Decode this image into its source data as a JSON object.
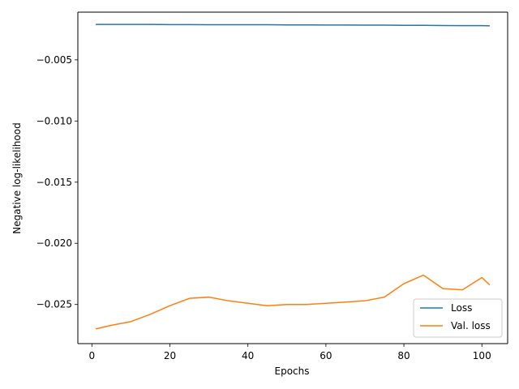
{
  "chart_data": {
    "type": "line",
    "title": "",
    "xlabel": "Epochs",
    "ylabel": "Negative log-likelihood",
    "xlim": [
      -3.6,
      106.6
    ],
    "ylim": [
      -0.0282,
      -0.0011
    ],
    "xticks": [
      0,
      20,
      40,
      60,
      80,
      100
    ],
    "xtick_labels": [
      "0",
      "20",
      "40",
      "60",
      "80",
      "100"
    ],
    "yticks": [
      -0.005,
      -0.01,
      -0.015,
      -0.02,
      -0.025
    ],
    "ytick_labels": [
      "−0.005",
      "−0.010",
      "−0.015",
      "−0.020",
      "−0.025"
    ],
    "grid": false,
    "legend_position": "lower-right",
    "x": [
      1,
      5,
      10,
      15,
      20,
      25,
      30,
      35,
      40,
      45,
      50,
      55,
      60,
      65,
      70,
      75,
      80,
      85,
      90,
      95,
      100,
      102
    ],
    "series": [
      {
        "name": "Loss",
        "color": "#1f77b4",
        "values": [
          -0.0021,
          -0.0021,
          -0.0021,
          -0.0021,
          -0.00212,
          -0.00212,
          -0.00213,
          -0.00213,
          -0.00213,
          -0.00213,
          -0.00214,
          -0.00214,
          -0.00215,
          -0.00215,
          -0.00216,
          -0.00216,
          -0.00218,
          -0.00218,
          -0.00219,
          -0.0022,
          -0.0022,
          -0.00222
        ]
      },
      {
        "name": "Val. loss",
        "color": "#ff7f0e",
        "values": [
          -0.027,
          -0.0267,
          -0.0264,
          -0.0258,
          -0.0251,
          -0.0245,
          -0.0244,
          -0.0247,
          -0.0249,
          -0.0251,
          -0.025,
          -0.025,
          -0.0249,
          -0.0248,
          -0.0247,
          -0.0244,
          -0.0233,
          -0.0226,
          -0.0237,
          -0.0238,
          -0.0228,
          -0.0234
        ]
      }
    ]
  }
}
